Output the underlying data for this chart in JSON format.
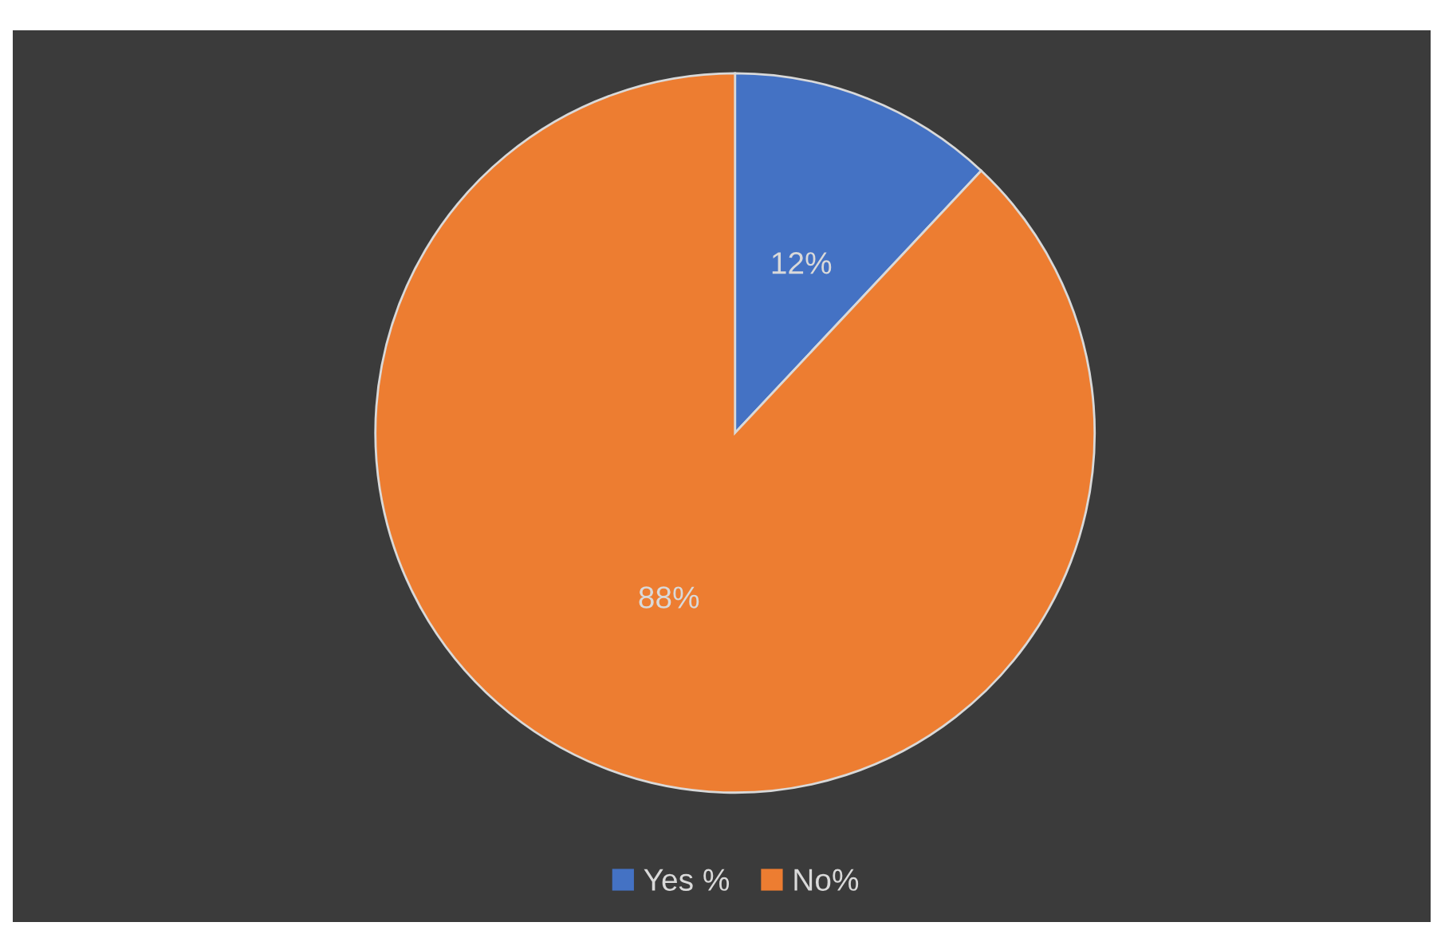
{
  "chart_data": {
    "type": "pie",
    "categories": [
      "Yes %",
      "No%"
    ],
    "values": [
      12,
      88
    ],
    "colors": [
      "#4472c4",
      "#ed7d31"
    ],
    "value_labels": [
      "12%",
      "88%"
    ],
    "legend": "bottom"
  }
}
